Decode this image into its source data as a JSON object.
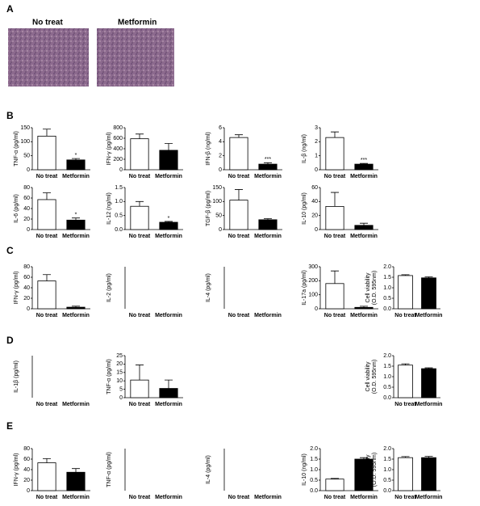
{
  "panel_labels": [
    "A",
    "B",
    "C",
    "D",
    "E"
  ],
  "image_titles": [
    "No treat",
    "Metformin"
  ],
  "chart_data": [
    {
      "type": "bar",
      "ylabel": [
        "TNF-α (pg/ml)"
      ],
      "categories": [
        "No treat",
        "Metformin"
      ],
      "values": [
        120,
        35
      ],
      "errors": [
        25,
        5
      ],
      "significance": [
        null,
        "*"
      ],
      "colors": [
        "#ffffff",
        "#000000"
      ],
      "ylim": [
        0,
        150
      ],
      "yticks": [
        0,
        50,
        100,
        150
      ]
    },
    {
      "type": "bar",
      "ylabel": [
        "IFN-γ (pg/ml)"
      ],
      "categories": [
        "No treat",
        "Metformin"
      ],
      "values": [
        590,
        370
      ],
      "errors": [
        90,
        130
      ],
      "colors": [
        "#ffffff",
        "#000000"
      ],
      "ylim": [
        0,
        800
      ],
      "yticks": [
        0,
        200,
        400,
        600,
        800
      ]
    },
    {
      "type": "bar",
      "ylabel": [
        "IFN-β (ng/ml)"
      ],
      "categories": [
        "No treat",
        "Metformin"
      ],
      "values": [
        4.6,
        0.8
      ],
      "errors": [
        0.4,
        0.2
      ],
      "significance": [
        null,
        "***"
      ],
      "colors": [
        "#ffffff",
        "#000000"
      ],
      "ylim": [
        0,
        6
      ],
      "yticks": [
        0,
        2,
        4,
        6
      ]
    },
    {
      "type": "bar",
      "ylabel": [
        "IL-β (ng/ml)"
      ],
      "categories": [
        "No treat",
        "Metformin"
      ],
      "values": [
        2.3,
        0.4
      ],
      "errors": [
        0.4,
        0.05
      ],
      "significance": [
        null,
        "***"
      ],
      "colors": [
        "#ffffff",
        "#000000"
      ],
      "ylim": [
        0,
        3
      ],
      "yticks": [
        0,
        1,
        2,
        3
      ]
    },
    {
      "type": "bar",
      "ylabel": [
        "IL-6 (pg/ml)"
      ],
      "categories": [
        "No treat",
        "Metformin"
      ],
      "values": [
        57,
        18
      ],
      "errors": [
        13,
        4
      ],
      "significance": [
        null,
        "*"
      ],
      "colors": [
        "#ffffff",
        "#000000"
      ],
      "ylim": [
        0,
        80
      ],
      "yticks": [
        0,
        20,
        40,
        60,
        80
      ]
    },
    {
      "type": "bar",
      "ylabel": [
        "IL-12 (ng/ml)"
      ],
      "categories": [
        "No treat",
        "Metformin"
      ],
      "values": [
        0.83,
        0.26
      ],
      "errors": [
        0.17,
        0.03
      ],
      "significance": [
        null,
        "*"
      ],
      "colors": [
        "#ffffff",
        "#000000"
      ],
      "ylim": [
        0,
        1.5
      ],
      "yticks": [
        {
          "value": 0,
          "label": "0.0"
        },
        0.5,
        {
          "value": 1,
          "label": "1.0"
        },
        1.5
      ]
    },
    {
      "type": "bar",
      "ylabel": [
        "TGF-β (pg/ml)"
      ],
      "categories": [
        "No treat",
        "Metformin"
      ],
      "values": [
        105,
        35
      ],
      "errors": [
        38,
        4
      ],
      "colors": [
        "#ffffff",
        "#000000"
      ],
      "ylim": [
        0,
        150
      ],
      "yticks": [
        0,
        50,
        100,
        150
      ]
    },
    {
      "type": "bar",
      "ylabel": [
        "IL-10 (pg/ml)"
      ],
      "categories": [
        "No treat",
        "Metformin"
      ],
      "values": [
        33,
        6
      ],
      "errors": [
        20,
        3
      ],
      "colors": [
        "#ffffff",
        "#000000"
      ],
      "ylim": [
        0,
        60
      ],
      "yticks": [
        0,
        20,
        40,
        60
      ]
    },
    {
      "type": "bar",
      "ylabel": [
        "IFN-γ (pg/ml)"
      ],
      "categories": [
        "No treat",
        "Metformin"
      ],
      "values": [
        53,
        3
      ],
      "errors": [
        12,
        2
      ],
      "colors": [
        "#ffffff",
        "#000000"
      ],
      "ylim": [
        0,
        80
      ],
      "yticks": [
        0,
        20,
        40,
        60,
        80
      ]
    },
    {
      "type": "bar",
      "ylabel": [
        "IL-2 (pg/ml)"
      ],
      "categories": [
        "No treat",
        "Metformin"
      ]
    },
    {
      "type": "bar",
      "ylabel": [
        "IL-4 (pg/ml)"
      ],
      "categories": [
        "No treat",
        "Metformin"
      ]
    },
    {
      "type": "bar",
      "ylabel": [
        "IL-17a (pg/ml)"
      ],
      "categories": [
        "No treat",
        "Metformin"
      ],
      "values": [
        180,
        10
      ],
      "errors": [
        90,
        8
      ],
      "colors": [
        "#ffffff",
        "#000000"
      ],
      "ylim": [
        0,
        300
      ],
      "yticks": [
        0,
        100,
        200,
        300
      ]
    },
    {
      "type": "bar",
      "ylabel": [
        "Cell viability",
        "(O.D. 595nm)"
      ],
      "categories": [
        "No treat",
        "Metformin"
      ],
      "values": [
        1.58,
        1.47
      ],
      "errors": [
        0.04,
        0.05
      ],
      "colors": [
        "#ffffff",
        "#000000"
      ],
      "ylim": [
        0,
        2
      ],
      "yticks": [
        {
          "value": 0,
          "label": "0.0"
        },
        0.5,
        {
          "value": 1,
          "label": "1.0"
        },
        1.5,
        {
          "value": 2,
          "label": "2.0"
        }
      ]
    },
    {
      "type": "bar",
      "ylabel": [
        "IL-1β (pg/ml)"
      ],
      "categories": [
        "No treat",
        "Metformin"
      ]
    },
    {
      "type": "bar",
      "ylabel": [
        "TNF-α (pg/ml)"
      ],
      "categories": [
        "No treat",
        "Metformin"
      ],
      "values": [
        10.5,
        5.5
      ],
      "errors": [
        9,
        5
      ],
      "colors": [
        "#ffffff",
        "#000000"
      ],
      "ylim": [
        0,
        25
      ],
      "yticks": [
        0,
        5,
        10,
        15,
        20,
        25
      ]
    },
    {
      "type": "bar",
      "ylabel": [
        "Cell viability",
        "(O.D. 595nm)"
      ],
      "categories": [
        "No treat",
        "Metformin"
      ],
      "values": [
        1.55,
        1.38
      ],
      "errors": [
        0.06,
        0.04
      ],
      "colors": [
        "#ffffff",
        "#000000"
      ],
      "ylim": [
        0,
        2
      ],
      "yticks": [
        {
          "value": 0,
          "label": "0.0"
        },
        0.5,
        {
          "value": 1,
          "label": "1.0"
        },
        1.5,
        {
          "value": 2,
          "label": "2.0"
        }
      ]
    },
    {
      "type": "bar",
      "ylabel": [
        "IFN-γ (pg/ml)"
      ],
      "categories": [
        "No treat",
        "Metformin"
      ],
      "values": [
        53,
        35
      ],
      "errors": [
        8,
        7
      ],
      "colors": [
        "#ffffff",
        "#000000"
      ],
      "ylim": [
        0,
        80
      ],
      "yticks": [
        0,
        20,
        40,
        60,
        80
      ]
    },
    {
      "type": "bar",
      "ylabel": [
        "TNF-α (pg/ml)"
      ],
      "categories": [
        "No treat",
        "Metformin"
      ]
    },
    {
      "type": "bar",
      "ylabel": [
        "IL-4 (pg/ml)"
      ],
      "categories": [
        "No treat",
        "Metformin"
      ]
    },
    {
      "type": "bar",
      "ylabel": [
        "IL-10 (ng/ml)"
      ],
      "categories": [
        "No treat",
        "Metformin"
      ],
      "values": [
        0.55,
        1.5
      ],
      "errors": [
        0.03,
        0.07
      ],
      "colors": [
        "#ffffff",
        "#000000"
      ],
      "ylim": [
        0,
        2
      ],
      "yticks": [
        {
          "value": 0,
          "label": "0.0"
        },
        0.5,
        {
          "value": 1,
          "label": "1.0"
        },
        1.5,
        {
          "value": 2,
          "label": "2.0"
        }
      ]
    },
    {
      "type": "bar",
      "ylabel": [
        "Cell viability",
        "(O.D. 595nm)"
      ],
      "categories": [
        "No treat",
        "Metformin"
      ],
      "values": [
        1.57,
        1.57
      ],
      "errors": [
        0.05,
        0.06
      ],
      "colors": [
        "#ffffff",
        "#000000"
      ],
      "ylim": [
        0,
        2
      ],
      "yticks": [
        {
          "value": 0,
          "label": "0.0"
        },
        0.5,
        {
          "value": 1,
          "label": "1.0"
        },
        1.5,
        {
          "value": 2,
          "label": "2.0"
        }
      ]
    }
  ]
}
